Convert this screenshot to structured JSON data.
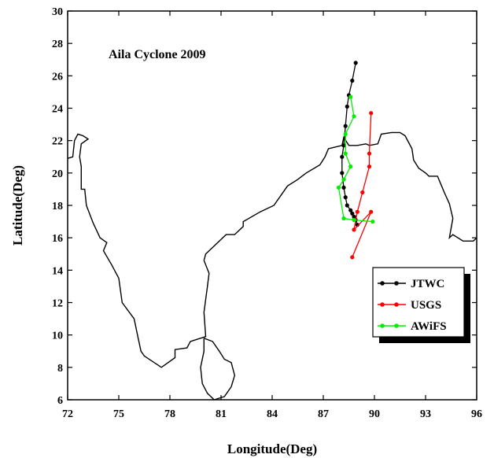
{
  "chart_data": {
    "type": "line",
    "annotation": "Aila Cyclone 2009",
    "xlabel": "Longitude(Deg)",
    "ylabel": "Latitude(Deg)",
    "xlim": [
      72,
      96
    ],
    "ylim": [
      6,
      30
    ],
    "xticks": [
      72,
      75,
      78,
      81,
      84,
      87,
      90,
      93,
      96
    ],
    "yticks": [
      6,
      8,
      10,
      12,
      14,
      16,
      18,
      20,
      22,
      24,
      26,
      28,
      30
    ],
    "grid": false,
    "legend_position": "bottom-right",
    "coastline": {
      "color": "#000000",
      "mainland": [
        [
          72.0,
          20.9
        ],
        [
          72.3,
          21.0
        ],
        [
          72.4,
          22.0
        ],
        [
          72.6,
          22.4
        ],
        [
          72.9,
          22.3
        ],
        [
          73.2,
          22.1
        ],
        [
          72.8,
          21.8
        ],
        [
          72.7,
          21.0
        ],
        [
          72.8,
          20.4
        ],
        [
          72.8,
          19.0
        ],
        [
          73.0,
          19.0
        ],
        [
          73.1,
          18.0
        ],
        [
          73.5,
          16.9
        ],
        [
          73.9,
          16.0
        ],
        [
          74.3,
          15.7
        ],
        [
          74.1,
          15.2
        ],
        [
          74.6,
          14.3
        ],
        [
          75.0,
          13.5
        ],
        [
          75.2,
          12.0
        ],
        [
          75.9,
          11.0
        ],
        [
          76.1,
          10.0
        ],
        [
          76.3,
          9.0
        ],
        [
          76.5,
          8.7
        ],
        [
          77.5,
          8.0
        ],
        [
          78.3,
          8.6
        ],
        [
          78.3,
          9.1
        ],
        [
          79.0,
          9.2
        ],
        [
          79.2,
          9.6
        ],
        [
          80.1,
          9.9
        ],
        [
          80.0,
          11.4
        ],
        [
          80.2,
          13.0
        ],
        [
          80.3,
          13.8
        ],
        [
          80.0,
          14.6
        ],
        [
          80.1,
          15.0
        ],
        [
          80.5,
          15.4
        ],
        [
          81.0,
          15.9
        ],
        [
          81.3,
          16.2
        ],
        [
          81.8,
          16.2
        ],
        [
          82.3,
          16.7
        ],
        [
          82.3,
          17.0
        ],
        [
          83.3,
          17.6
        ],
        [
          84.1,
          18.0
        ],
        [
          84.9,
          19.2
        ],
        [
          85.5,
          19.6
        ],
        [
          86.0,
          20.0
        ],
        [
          86.8,
          20.5
        ],
        [
          87.1,
          21.0
        ],
        [
          87.3,
          21.5
        ],
        [
          88.1,
          21.7
        ],
        [
          88.2,
          22.2
        ],
        [
          88.5,
          21.7
        ],
        [
          89.0,
          21.7
        ],
        [
          89.5,
          21.8
        ],
        [
          89.7,
          21.7
        ],
        [
          90.2,
          21.8
        ],
        [
          90.4,
          22.4
        ],
        [
          91.0,
          22.5
        ],
        [
          91.5,
          22.5
        ],
        [
          91.8,
          22.3
        ],
        [
          92.2,
          21.5
        ],
        [
          92.3,
          20.8
        ],
        [
          92.6,
          20.3
        ],
        [
          93.0,
          20.0
        ],
        [
          93.2,
          19.8
        ],
        [
          93.7,
          19.8
        ],
        [
          93.9,
          19.3
        ],
        [
          94.1,
          18.8
        ],
        [
          94.4,
          18.1
        ],
        [
          94.6,
          17.2
        ],
        [
          94.4,
          16.0
        ],
        [
          94.6,
          16.2
        ],
        [
          95.2,
          15.8
        ],
        [
          95.8,
          15.8
        ],
        [
          96.0,
          16.0
        ]
      ],
      "sri_lanka": [
        [
          80.0,
          9.8
        ],
        [
          80.5,
          9.6
        ],
        [
          80.9,
          9.0
        ],
        [
          81.2,
          8.5
        ],
        [
          81.6,
          8.3
        ],
        [
          81.8,
          7.5
        ],
        [
          81.6,
          6.8
        ],
        [
          81.2,
          6.2
        ],
        [
          80.6,
          6.0
        ],
        [
          80.2,
          6.4
        ],
        [
          79.9,
          7.0
        ],
        [
          79.8,
          8.0
        ],
        [
          80.0,
          9.0
        ],
        [
          80.0,
          9.8
        ]
      ]
    },
    "series": [
      {
        "name": "JTWC",
        "color": "#000000",
        "x": [
          89.0,
          88.9,
          88.8,
          88.7,
          88.6,
          88.4,
          88.3,
          88.2,
          88.1,
          88.1,
          88.2,
          88.3,
          88.4,
          88.5,
          88.7,
          88.9
        ],
        "y": [
          16.8,
          17.1,
          17.3,
          17.5,
          17.7,
          18.0,
          18.5,
          19.1,
          20.0,
          21.0,
          21.7,
          22.9,
          24.1,
          24.8,
          25.7,
          26.8
        ]
      },
      {
        "name": "USGS",
        "color": "#ff0000",
        "x": [
          88.7,
          89.8,
          88.8,
          89.0,
          89.3,
          89.7,
          89.7,
          89.8
        ],
        "y": [
          14.8,
          17.6,
          16.5,
          17.6,
          18.8,
          20.4,
          21.2,
          23.7
        ]
      },
      {
        "name": "AWiFS",
        "color": "#00ee00",
        "x": [
          89.9,
          88.8,
          88.2,
          87.9,
          88.2,
          88.6,
          88.3,
          88.3,
          88.8,
          88.6
        ],
        "y": [
          17.0,
          17.1,
          17.2,
          19.1,
          19.6,
          20.4,
          21.2,
          22.4,
          23.5,
          24.7
        ]
      }
    ]
  }
}
